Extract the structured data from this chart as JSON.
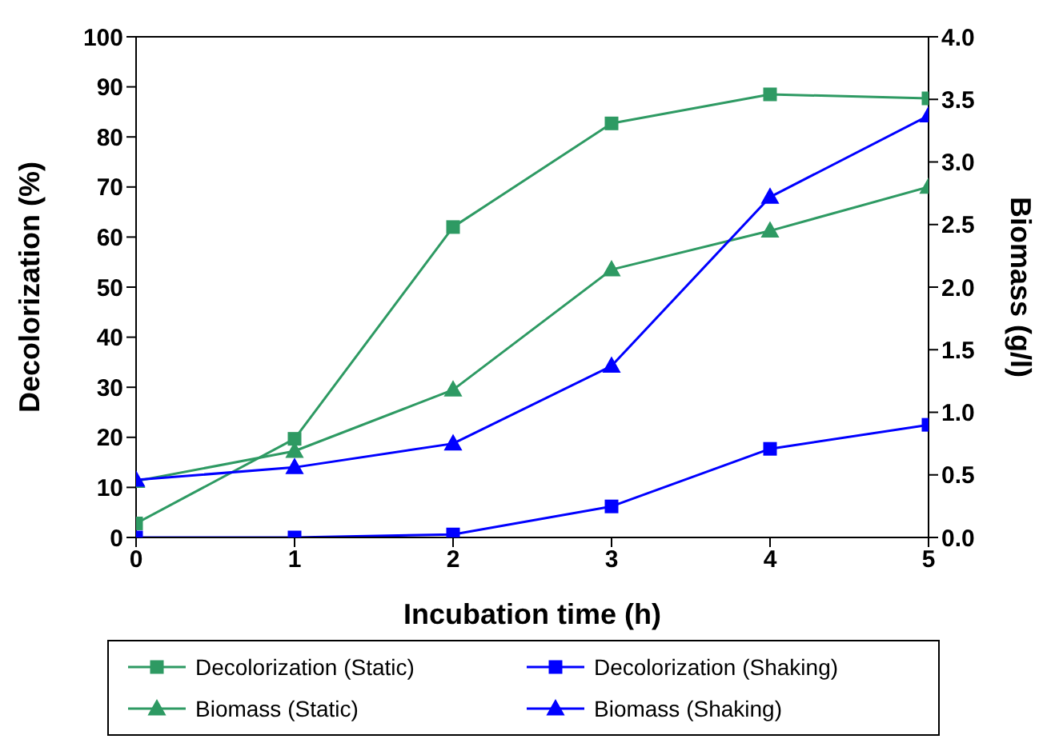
{
  "chart_data": {
    "type": "line",
    "xlabel": "Incubation time (h)",
    "ylabel": "Decolorization (%)",
    "y2label": "Biomass (g/l)",
    "x": [
      0,
      1,
      2,
      3,
      4,
      5
    ],
    "xlim": [
      0,
      5
    ],
    "xticks": [
      0,
      1,
      2,
      3,
      4,
      5
    ],
    "ylim": [
      0,
      100
    ],
    "yticks": [
      0,
      10,
      20,
      30,
      40,
      50,
      60,
      70,
      80,
      90,
      100
    ],
    "y2lim": [
      0,
      4
    ],
    "y2ticks": [
      {
        "value": 0,
        "label": "0.0"
      },
      {
        "value": 0.5,
        "label": "0.5"
      },
      {
        "value": 1,
        "label": "1.0"
      },
      {
        "value": 1.5,
        "label": "1.5"
      },
      {
        "value": 2,
        "label": "2.0"
      },
      {
        "value": 2.5,
        "label": "2.5"
      },
      {
        "value": 3,
        "label": "3.0"
      },
      {
        "value": 3.5,
        "label": "3.5"
      },
      {
        "value": 4,
        "label": "4.0"
      }
    ],
    "grid": false,
    "legend": "bottom",
    "line_style": "solid",
    "series": [
      {
        "name": "Decolorization (Static)",
        "color": "#2e9a63",
        "marker": "square",
        "values": [
          2.8,
          19.7,
          62,
          82.7,
          88.5,
          87.7
        ]
      },
      {
        "name": "Decolorization (Shaking)",
        "color": "#0000ff",
        "marker": "square",
        "values": [
          0,
          0,
          0.6,
          6.2,
          17.7,
          22.5
        ]
      },
      {
        "name": "Biomass (Static)",
        "color": "#2e9a63",
        "marker": "triangle",
        "axis": "y2",
        "values": [
          0.45,
          0.69,
          1.18,
          2.14,
          2.45,
          2.8
        ]
      },
      {
        "name": "Biomass (Shaking)",
        "color": "#0000ff",
        "marker": "triangle",
        "axis": "y2",
        "values": [
          0.46,
          0.56,
          0.75,
          1.37,
          2.72,
          3.37
        ]
      }
    ]
  }
}
